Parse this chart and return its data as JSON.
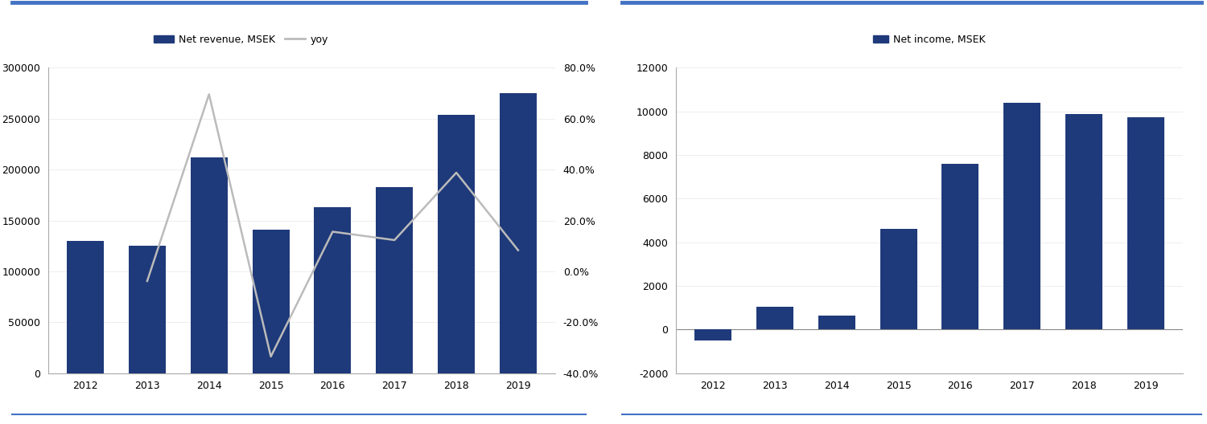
{
  "years": [
    2012,
    2013,
    2014,
    2015,
    2016,
    2017,
    2018,
    2019
  ],
  "net_revenue": [
    130000,
    125000,
    212000,
    141000,
    163000,
    183000,
    254000,
    275000
  ],
  "yoy_years_idx": [
    1,
    2,
    3,
    4,
    5,
    6,
    7
  ],
  "yoy": [
    -0.038,
    0.696,
    -0.335,
    0.156,
    0.123,
    0.388,
    0.083
  ],
  "net_income": [
    -500,
    1050,
    650,
    4600,
    7600,
    10400,
    9900,
    9750
  ],
  "bar_color": "#1F3A7A",
  "line_color": "#BBBBBB",
  "background_color": "#FFFFFF",
  "revenue_ylim": [
    0,
    300000
  ],
  "revenue_yticks": [
    0,
    50000,
    100000,
    150000,
    200000,
    250000,
    300000
  ],
  "yoy_ylim": [
    -0.4,
    0.8
  ],
  "yoy_yticks": [
    -0.4,
    -0.2,
    0.0,
    0.2,
    0.4,
    0.6,
    0.8
  ],
  "income_ylim": [
    -2000,
    12000
  ],
  "income_yticks": [
    -2000,
    0,
    2000,
    4000,
    6000,
    8000,
    10000,
    12000
  ],
  "legend1_label1": "Net revenue, MSEK",
  "legend1_label2": "yoy",
  "legend2_label": "Net income, MSEK",
  "fig_width": 15.0,
  "fig_height": 5.28,
  "dpi": 100,
  "border_color": "#4472C4"
}
